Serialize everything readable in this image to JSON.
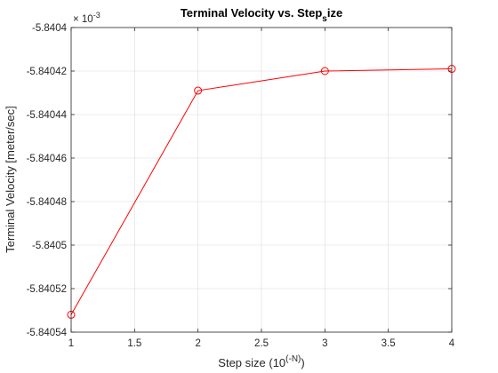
{
  "chart_data": {
    "type": "line",
    "title": "Terminal Velocity vs. Step",
    "title_sub": "s",
    "title_suffix": "ize",
    "xlabel": "Step size (10",
    "xlabel_sup": "(-N)",
    "xlabel_suffix": ")",
    "ylabel": "Terminal Velocity [meter/sec]",
    "exponent_base": "× 10",
    "exponent_power": "-3",
    "xlim": [
      1,
      4
    ],
    "ylim": [
      -5.84054,
      -5.8404
    ],
    "grid": true,
    "x_ticks": [
      1,
      1.5,
      2,
      2.5,
      3,
      3.5,
      4
    ],
    "x_tick_labels": [
      "1",
      "1.5",
      "2",
      "2.5",
      "3",
      "3.5",
      "4"
    ],
    "y_ticks": [
      -5.8404,
      -5.84042,
      -5.84044,
      -5.84046,
      -5.84048,
      -5.8405,
      -5.84052,
      -5.84054
    ],
    "y_tick_labels": [
      "-5.8404",
      "-5.84042",
      "-5.84044",
      "-5.84046",
      "-5.84048",
      "-5.8405",
      "-5.84052",
      "-5.84054"
    ],
    "series": [
      {
        "x": [
          1,
          2,
          3,
          4
        ],
        "y": [
          -5.840532,
          -5.840429,
          -5.84042,
          -5.840419
        ],
        "color": "#ff0000",
        "marker": "circle"
      }
    ]
  }
}
